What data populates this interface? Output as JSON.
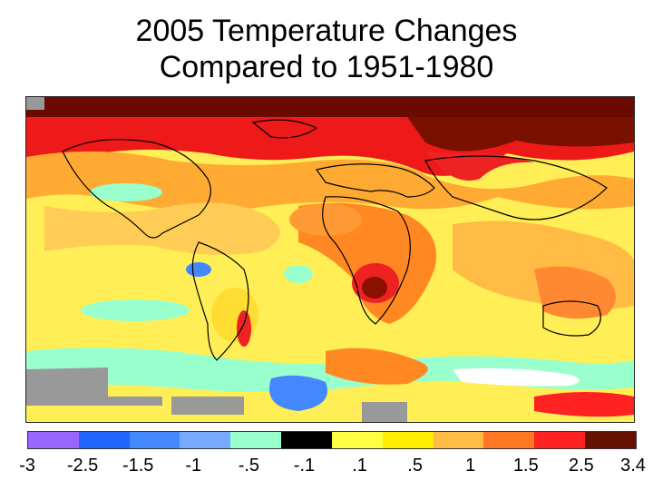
{
  "title": {
    "line1": "2005 Temperature Changes",
    "line2": "Compared to 1951-1980"
  },
  "legend": {
    "colors": [
      "#9966ff",
      "#2266ff",
      "#4488ff",
      "#77aaff",
      "#99ffcc",
      "#000000",
      "#ffff44",
      "#ffee00",
      "#ffbb44",
      "#ff7722",
      "#ff2222",
      "#661100"
    ],
    "ticks": [
      "-3",
      "-2.5",
      "-1.5",
      "-1",
      "-.5",
      "-.1",
      ".1",
      ".5",
      "1",
      "1.5",
      "2.5",
      "3.4"
    ]
  },
  "map": {
    "description_colors": {
      "arctic": "#661100",
      "high_lat": "#ee1111",
      "warm": "#ff8822",
      "mild": "#ffbb44",
      "neutral": "#ffff66",
      "cool": "#99ffcc",
      "no_data": "#999999",
      "cold": "#4488ff"
    }
  }
}
